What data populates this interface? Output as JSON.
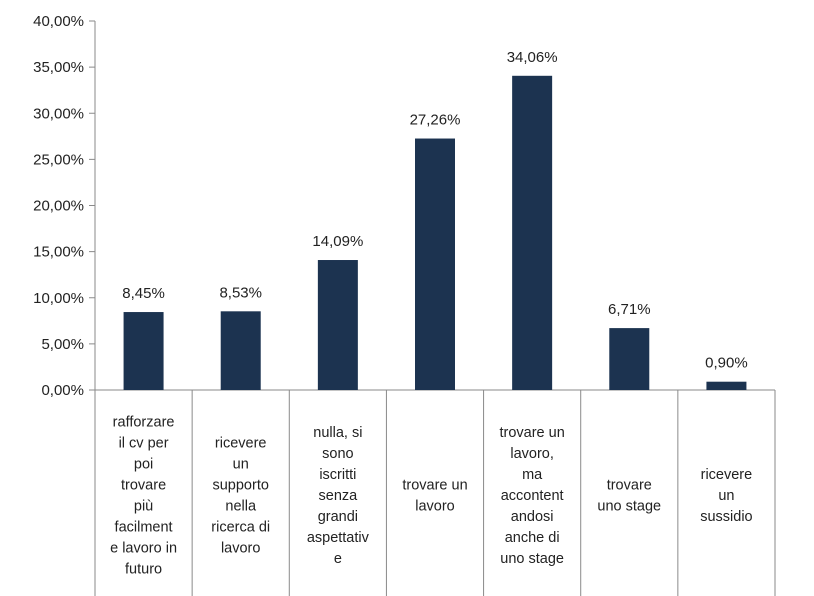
{
  "chart_data": {
    "type": "bar",
    "categories": [
      [
        "rafforzare",
        "il cv per",
        "poi",
        "trovare",
        "più",
        "facilment",
        "e lavoro in",
        "futuro"
      ],
      [
        "ricevere",
        "un",
        "supporto",
        "nella",
        "ricerca di",
        "lavoro"
      ],
      [
        "nulla,  si",
        "sono",
        "iscritti",
        "senza",
        "grandi",
        "aspettativ",
        "e"
      ],
      [
        "trovare un",
        "lavoro"
      ],
      [
        "trovare un",
        "lavoro,",
        "ma",
        "accontent",
        "andosi",
        "anche di",
        "uno stage"
      ],
      [
        "trovare",
        "uno stage"
      ],
      [
        "ricevere",
        "un",
        "sussidio"
      ]
    ],
    "values": [
      8.45,
      8.53,
      14.09,
      27.26,
      34.06,
      6.71,
      0.9
    ],
    "data_labels": [
      "8,45%",
      "8,53%",
      "14,09%",
      "27,26%",
      "34,06%",
      "6,71%",
      "0,90%"
    ],
    "ylim": [
      0,
      40
    ],
    "yticks": [
      0,
      5,
      10,
      15,
      20,
      25,
      30,
      35,
      40
    ],
    "ytick_labels": [
      "0,00%",
      "5,00%",
      "10,00%",
      "15,00%",
      "20,00%",
      "25,00%",
      "30,00%",
      "35,00%",
      "40,00%"
    ],
    "grid": false,
    "legend": "none",
    "bar_color": "#1c3350",
    "axis_color": "#8a8a8a"
  }
}
